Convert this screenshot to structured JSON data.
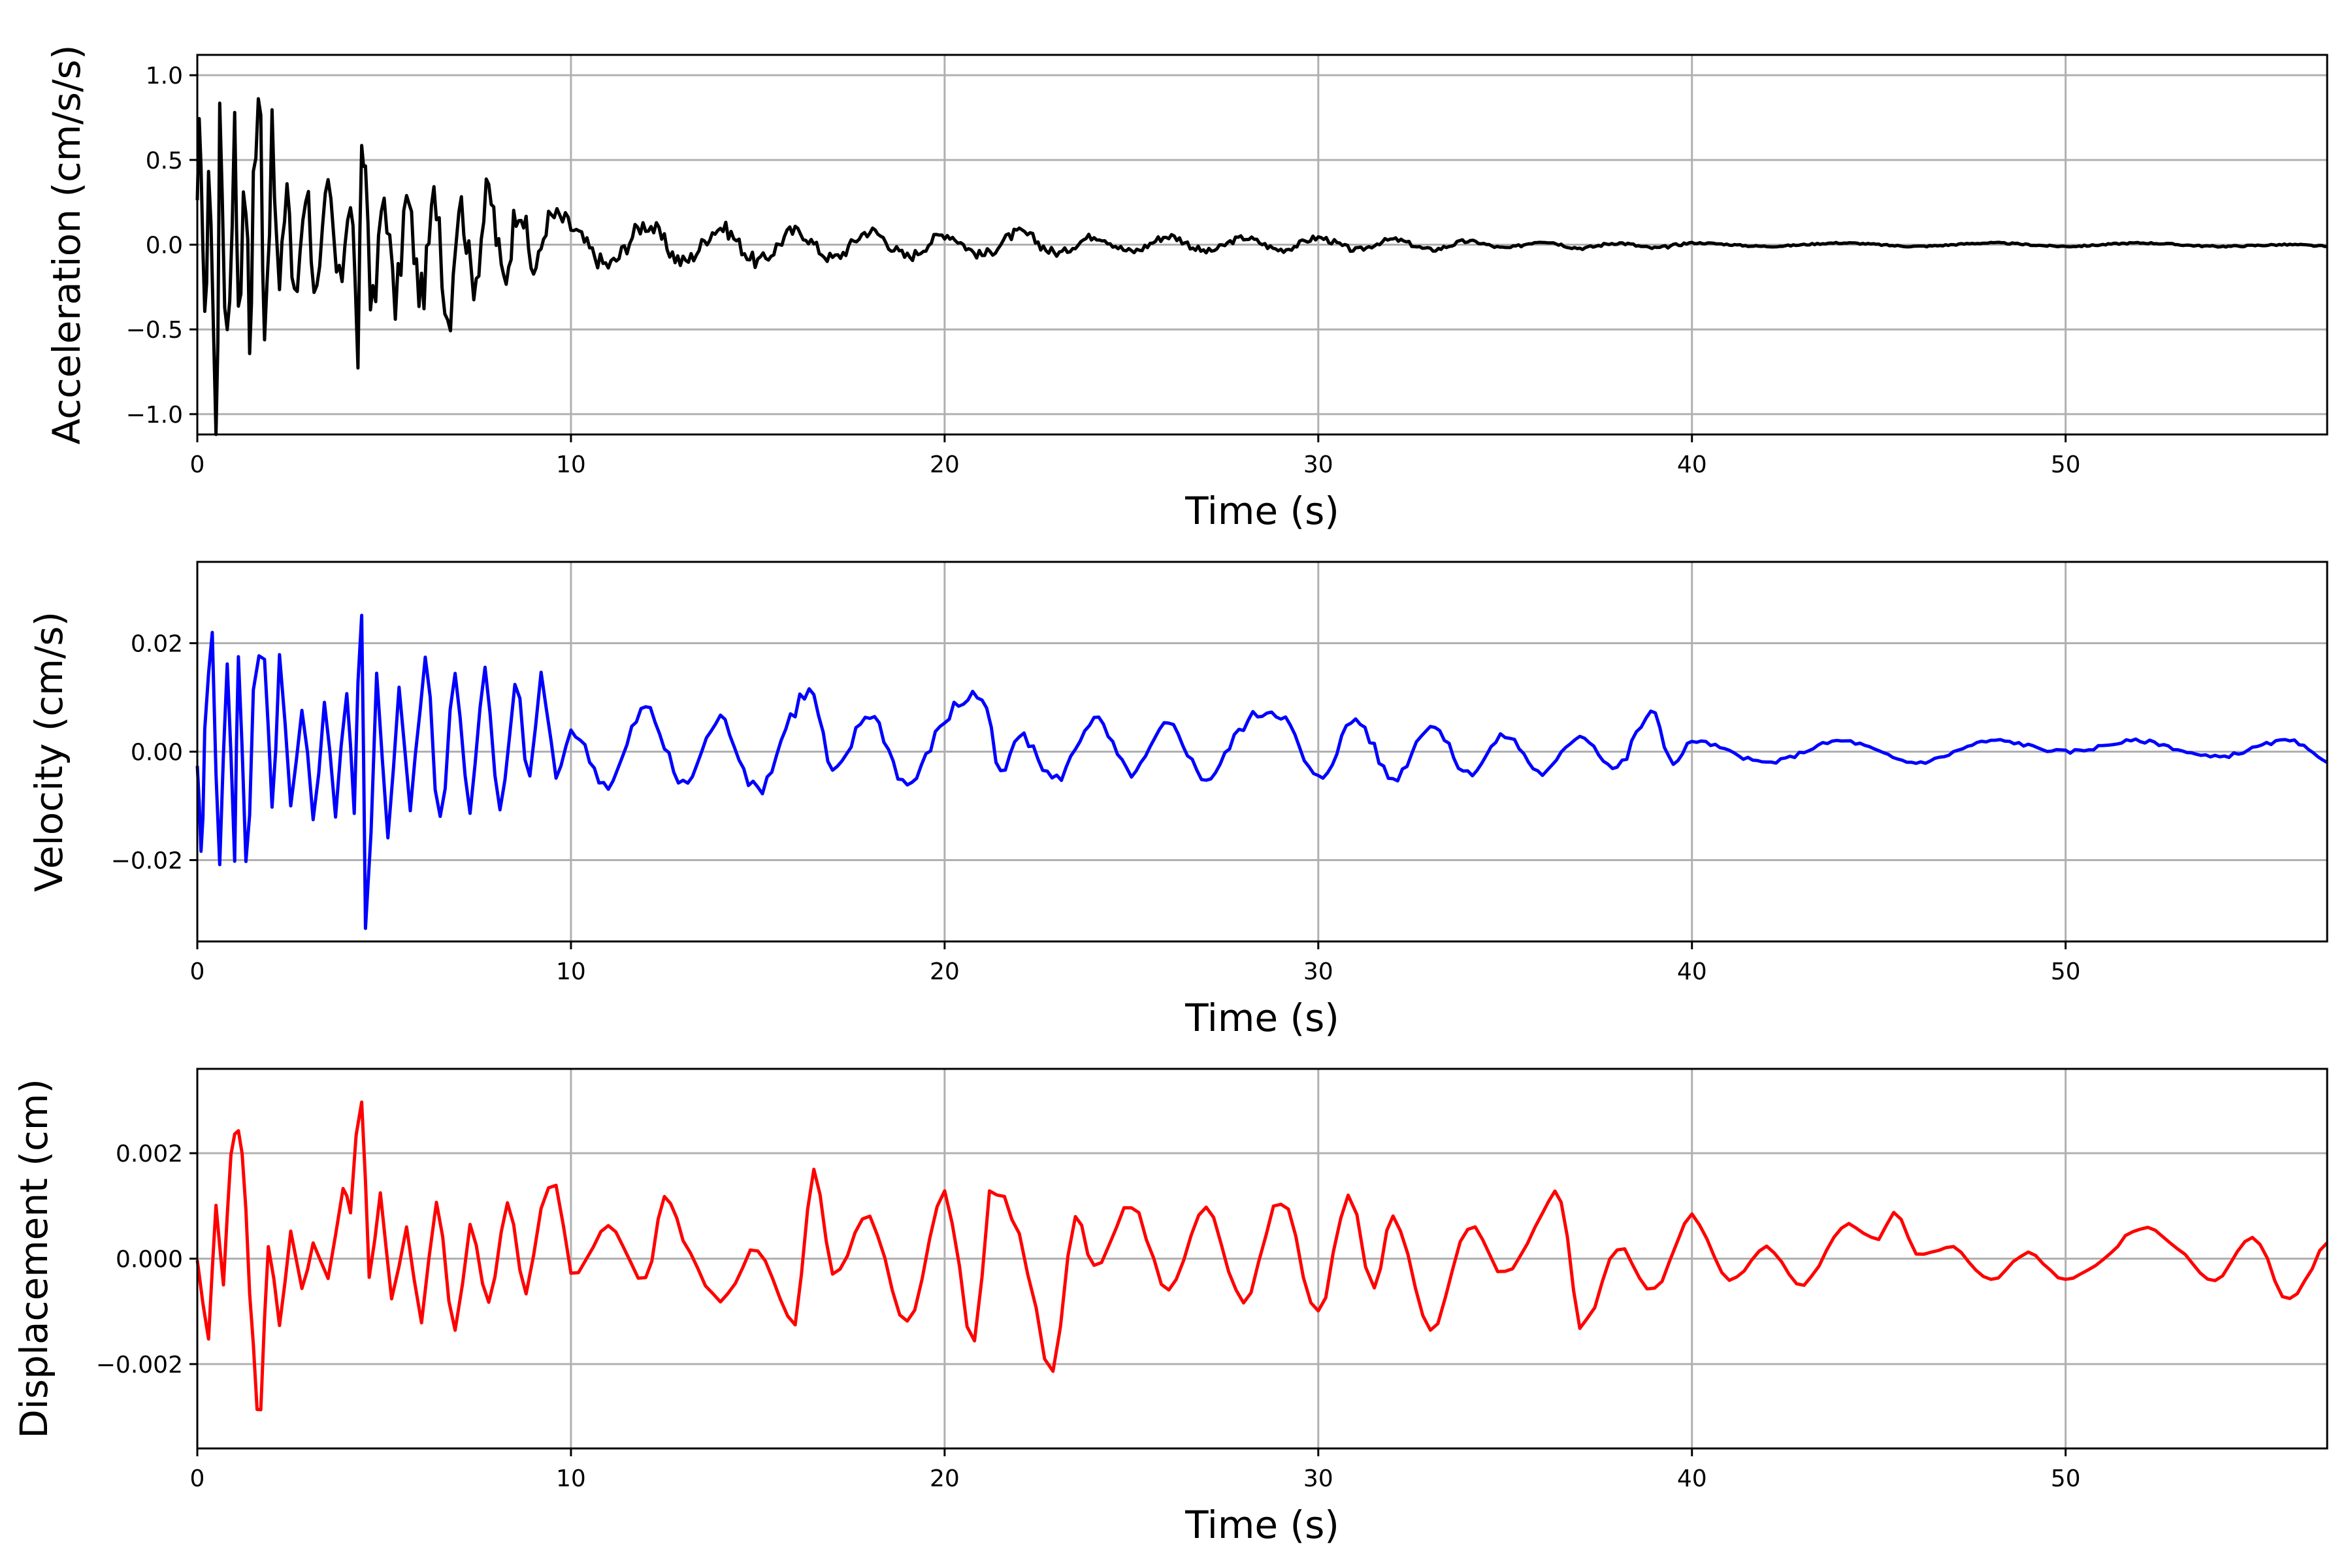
{
  "chart_data": [
    {
      "type": "line",
      "xlabel": "Time (s)",
      "ylabel": "Acceleration (cm/s/s)",
      "xlim": [
        0,
        57
      ],
      "ylim": [
        -1.12,
        1.12
      ],
      "xticks": [
        0,
        10,
        20,
        30,
        40,
        50
      ],
      "xtick_labels": [
        "0",
        "10",
        "20",
        "30",
        "40",
        "50"
      ],
      "yticks": [
        -1.0,
        -0.5,
        0.0,
        0.5,
        1.0
      ],
      "ytick_labels": [
        "−1.0",
        "−0.5",
        "0.0",
        "0.5",
        "1.0"
      ],
      "grid": true,
      "color": "#000000",
      "series": [
        {
          "x": [
            0,
            0.1,
            0.2,
            0.3,
            0.5,
            0.6,
            0.8,
            1.0,
            1.1,
            1.3,
            1.4,
            1.5,
            1.7,
            1.8,
            2.0,
            2.2,
            2.4,
            2.6,
            2.9,
            3.2,
            3.5,
            3.8,
            4.1,
            4.3,
            4.4,
            4.5,
            4.7,
            5.0,
            5.3,
            5.6,
            6.0,
            6.4,
            6.7,
            7.0,
            7.4,
            7.8,
            8.2,
            8.6,
            9.0,
            9.4,
            10,
            11,
            12,
            13,
            14,
            15,
            16,
            17,
            18,
            19,
            20,
            21,
            22,
            23,
            24,
            25,
            26,
            27,
            28,
            29,
            30,
            31,
            32,
            33,
            34,
            35,
            36,
            37,
            38,
            39,
            40,
            42,
            44,
            46,
            48,
            50,
            52,
            54,
            56,
            57
          ],
          "y": [
            0.0,
            0.75,
            -0.62,
            0.55,
            -1.0,
            0.6,
            -0.5,
            0.65,
            -0.3,
            0.35,
            -0.6,
            0.4,
            0.7,
            -0.4,
            0.55,
            -0.3,
            0.4,
            -0.35,
            0.35,
            -0.3,
            0.3,
            -0.25,
            0.3,
            -0.58,
            0.4,
            0.45,
            -0.4,
            0.3,
            -0.35,
            0.25,
            -0.3,
            0.3,
            -0.42,
            0.25,
            -0.2,
            0.3,
            -0.2,
            0.25,
            -0.15,
            0.15,
            0.1,
            -0.12,
            0.12,
            -0.1,
            0.1,
            -0.1,
            0.08,
            -0.08,
            0.08,
            -0.07,
            0.06,
            -0.06,
            0.07,
            -0.05,
            0.05,
            -0.04,
            0.05,
            -0.04,
            0.04,
            -0.03,
            0.04,
            -0.03,
            0.03,
            -0.03,
            0.02,
            -0.02,
            0.02,
            -0.02,
            0.01,
            -0.02,
            0.01,
            -0.01,
            0.01,
            -0.01,
            0.01,
            -0.01,
            0.01,
            -0.01,
            0.0,
            -0.01
          ]
        }
      ]
    },
    {
      "type": "line",
      "xlabel": "Time (s)",
      "ylabel": "Velocity (cm/s)",
      "xlim": [
        0,
        57
      ],
      "ylim": [
        -0.035,
        0.035
      ],
      "xticks": [
        0,
        10,
        20,
        30,
        40,
        50
      ],
      "xtick_labels": [
        "0",
        "10",
        "20",
        "30",
        "40",
        "50"
      ],
      "yticks": [
        -0.02,
        0.0,
        0.02
      ],
      "ytick_labels": [
        "−0.02",
        "0.00",
        "0.02"
      ],
      "grid": true,
      "color": "#0000ff",
      "series": [
        {
          "x": [
            0,
            0.1,
            0.2,
            0.4,
            0.6,
            0.8,
            1.0,
            1.1,
            1.3,
            1.5,
            1.8,
            2.0,
            2.2,
            2.5,
            2.8,
            3.1,
            3.4,
            3.7,
            4.0,
            4.2,
            4.4,
            4.5,
            4.8,
            5.1,
            5.4,
            5.7,
            6.1,
            6.5,
            6.9,
            7.3,
            7.7,
            8.1,
            8.5,
            8.9,
            9.2,
            9.6,
            10,
            11,
            12,
            13,
            14,
            15,
            16,
            16.5,
            17,
            18,
            19,
            20,
            21,
            21.5,
            22,
            23,
            24,
            25,
            26,
            27,
            28,
            29,
            30,
            31,
            32,
            33,
            34,
            35,
            36,
            37,
            38,
            38.9,
            39.5,
            40,
            42,
            44,
            46,
            48,
            50,
            52,
            54,
            56,
            57
          ],
          "y": [
            0.0,
            -0.02,
            0.006,
            0.02,
            -0.021,
            0.018,
            -0.018,
            0.02,
            -0.023,
            0.01,
            0.02,
            -0.01,
            0.017,
            -0.01,
            0.008,
            -0.012,
            0.008,
            -0.01,
            0.012,
            -0.01,
            0.024,
            -0.032,
            0.015,
            -0.016,
            0.012,
            -0.01,
            0.017,
            -0.012,
            0.014,
            -0.01,
            0.014,
            -0.012,
            0.012,
            -0.005,
            0.014,
            -0.005,
            0.004,
            -0.006,
            0.008,
            -0.006,
            0.006,
            -0.007,
            0.008,
            0.01,
            -0.004,
            0.007,
            -0.006,
            0.006,
            0.01,
            -0.004,
            0.003,
            -0.005,
            0.006,
            -0.004,
            0.005,
            -0.005,
            0.005,
            0.007,
            -0.005,
            0.006,
            -0.005,
            0.005,
            -0.004,
            0.003,
            -0.004,
            0.003,
            -0.003,
            0.007,
            -0.002,
            0.002,
            -0.002,
            0.002,
            -0.002,
            0.002,
            0.0,
            0.002,
            -0.001,
            0.002,
            -0.002
          ]
        }
      ]
    },
    {
      "type": "line",
      "xlabel": "Time (s)",
      "ylabel": "Displacement (cm)",
      "xlim": [
        0,
        57
      ],
      "ylim": [
        -0.0036,
        0.0036
      ],
      "xticks": [
        0,
        10,
        20,
        30,
        40,
        50
      ],
      "xtick_labels": [
        "0",
        "10",
        "20",
        "30",
        "40",
        "50"
      ],
      "yticks": [
        -0.002,
        0.0,
        0.002
      ],
      "ytick_labels": [
        "−0.002",
        "0.000",
        "0.002"
      ],
      "grid": true,
      "color": "#ff0000",
      "series": [
        {
          "x": [
            0,
            0.3,
            0.5,
            0.7,
            0.9,
            1.1,
            1.3,
            1.5,
            1.7,
            1.9,
            2.2,
            2.5,
            2.8,
            3.1,
            3.5,
            3.9,
            4.1,
            4.4,
            4.6,
            4.9,
            5.2,
            5.6,
            6.0,
            6.4,
            6.9,
            7.3,
            7.8,
            8.3,
            8.8,
            9.2,
            9.6,
            10,
            11,
            12,
            12.5,
            13,
            14,
            15,
            16,
            16.5,
            17,
            18,
            19,
            20,
            20.8,
            21.2,
            22,
            22.9,
            23.5,
            24,
            25,
            26,
            27,
            28,
            29,
            30,
            30.8,
            31.5,
            32,
            33,
            34,
            35,
            36,
            36.5,
            37,
            38,
            39,
            40,
            41,
            42,
            43,
            44,
            45,
            45.4,
            46,
            47,
            48,
            49,
            50,
            51,
            52,
            53,
            54,
            55,
            56,
            57
          ],
          "y": [
            0.0,
            -0.0015,
            0.001,
            -0.0004,
            0.002,
            0.0025,
            0.0008,
            -0.0018,
            -0.0029,
            0.0003,
            -0.0012,
            0.0005,
            -0.0006,
            0.0003,
            -0.0003,
            0.0013,
            0.001,
            0.0032,
            -0.0004,
            0.0012,
            -0.0008,
            0.0006,
            -0.0012,
            0.001,
            -0.0014,
            0.0006,
            -0.0008,
            0.001,
            -0.0006,
            0.001,
            0.0014,
            -0.0003,
            0.0006,
            -0.0004,
            0.0012,
            0.0004,
            -0.0008,
            0.0002,
            -0.0012,
            0.0017,
            -0.0003,
            0.0008,
            -0.0012,
            0.0012,
            -0.0016,
            0.0012,
            0.0004,
            -0.0021,
            0.0008,
            -0.0002,
            0.001,
            -0.0006,
            0.001,
            -0.0008,
            0.0011,
            -0.001,
            0.0012,
            -0.0006,
            0.0008,
            -0.0014,
            0.0006,
            -0.0003,
            0.0008,
            0.0011,
            -0.0013,
            0.0002,
            -0.0006,
            0.0008,
            -0.0004,
            0.0002,
            -0.0005,
            0.0006,
            0.0004,
            0.0009,
            0.0001,
            0.0002,
            -0.0004,
            0.0001,
            -0.0004,
            0.0,
            0.0006,
            0.0002,
            -0.0004,
            0.0004,
            -0.0008,
            0.0003
          ]
        }
      ]
    }
  ]
}
